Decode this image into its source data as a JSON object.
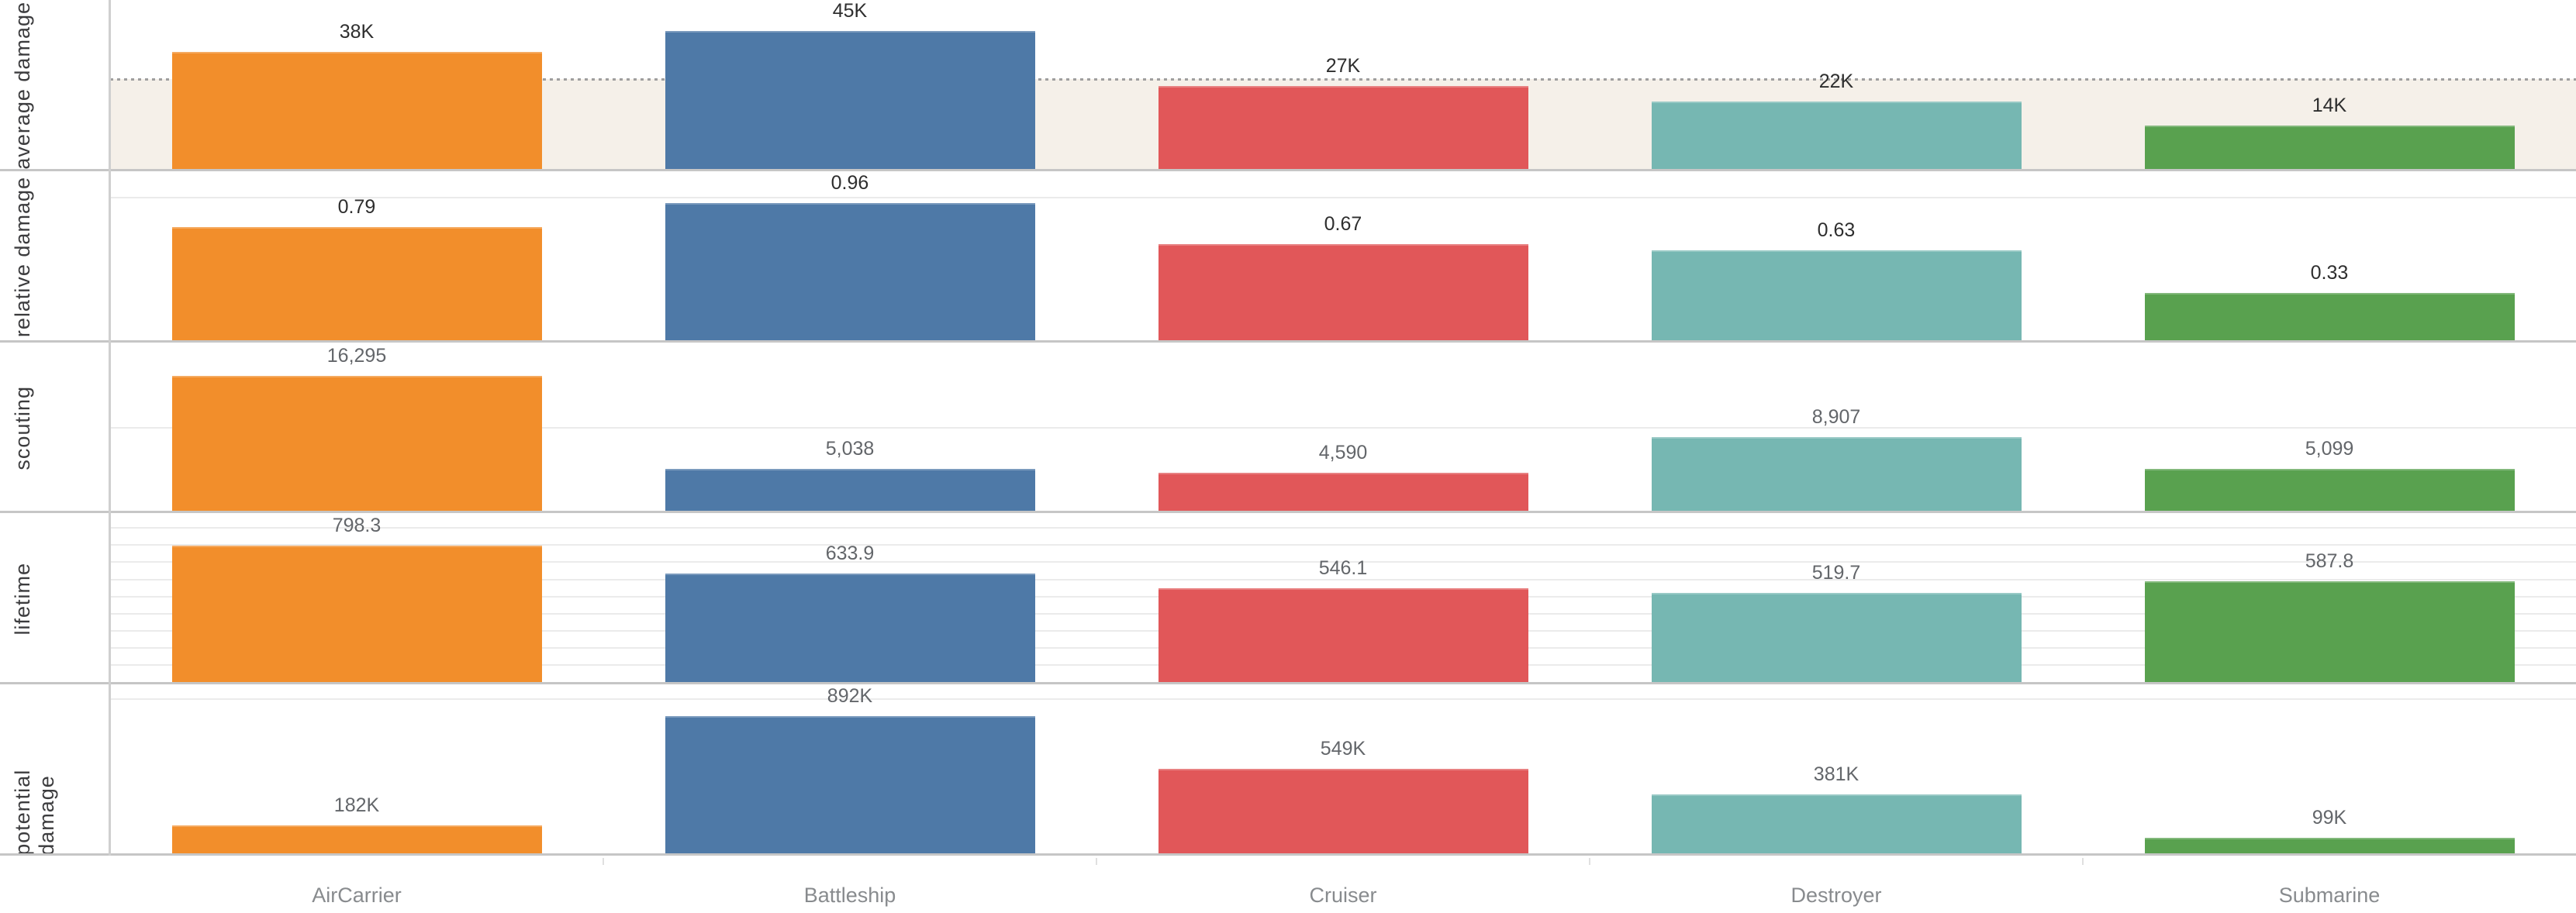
{
  "chart_data": {
    "type": "bar",
    "layout": "small-multiples: one horizontal panel per metric, shared category x-axis, grid mostly off, no legend (color = category)",
    "categories": [
      "AirCarrier",
      "Battleship",
      "Cruiser",
      "Destroyer",
      "Submarine"
    ],
    "series_colors": {
      "AirCarrier": "#F28E2B",
      "Battleship": "#4E79A7",
      "Cruiser": "#E15759",
      "Destroyer": "#76B7B2",
      "Submarine": "#59A14F"
    },
    "panels": [
      {
        "metric": "average damage",
        "values": [
          38000,
          45000,
          27000,
          22000,
          14000
        ],
        "labels": [
          "38K",
          "45K",
          "27K",
          "22K",
          "14K"
        ],
        "ylim": [
          0,
          55000
        ],
        "label_color": "#2E2E2E",
        "gridlines": [],
        "reference_line": {
          "value": 29200,
          "style": "dotted",
          "color": "#9F9F9F"
        },
        "reference_band": {
          "from": 0,
          "to": 29200,
          "color": "#F5F0E9"
        }
      },
      {
        "metric": "relative damage",
        "values": [
          0.79,
          0.96,
          0.67,
          0.63,
          0.33
        ],
        "labels": [
          "0.79",
          "0.96",
          "0.67",
          "0.63",
          "0.33"
        ],
        "ylim": [
          0,
          1.185
        ],
        "label_color": "#2E2E2E",
        "gridlines": [
          1
        ]
      },
      {
        "metric": "scouting",
        "values": [
          16295,
          5038,
          4590,
          8907,
          5099
        ],
        "labels": [
          "16,295",
          "5,038",
          "4,590",
          "8,907",
          "5,099"
        ],
        "ylim": [
          0,
          20300
        ],
        "label_color": "#63666A",
        "gridlines": [
          10000
        ]
      },
      {
        "metric": "lifetime",
        "values": [
          798.3,
          633.9,
          546.1,
          519.7,
          587.8
        ],
        "labels": [
          "798.3",
          "633.9",
          "546.1",
          "519.7",
          "587.8"
        ],
        "ylim": [
          0,
          985
        ],
        "label_color": "#63666A",
        "gridlines": [
          100,
          200,
          300,
          400,
          500,
          600,
          700,
          800,
          900
        ]
      },
      {
        "metric": "potential damage",
        "values": [
          182000,
          892000,
          549000,
          381000,
          99000
        ],
        "labels": [
          "182K",
          "892K",
          "549K",
          "381K",
          "99K"
        ],
        "ylim": [
          0,
          1095000
        ],
        "label_color": "#63666A",
        "gridlines": [
          1000000
        ]
      }
    ],
    "axis": {
      "row_label_color": "#3C3C3E",
      "category_label_color": "#888B8E",
      "gridline_color": "#EBEBEB",
      "separator_color": "#C6C6C6",
      "axis_line_color": "#CFCFCF",
      "tick_color": "#E0E0E0",
      "background": "#FFFFFF"
    }
  }
}
